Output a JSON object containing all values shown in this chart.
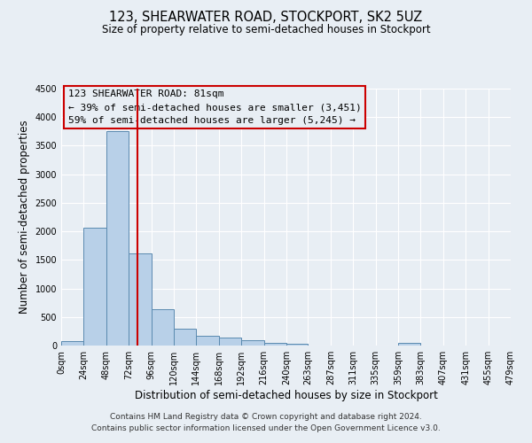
{
  "title": "123, SHEARWATER ROAD, STOCKPORT, SK2 5UZ",
  "subtitle": "Size of property relative to semi-detached houses in Stockport",
  "xlabel": "Distribution of semi-detached houses by size in Stockport",
  "ylabel": "Number of semi-detached properties",
  "footer_line1": "Contains HM Land Registry data © Crown copyright and database right 2024.",
  "footer_line2": "Contains public sector information licensed under the Open Government Licence v3.0.",
  "bin_edges": [
    0,
    24,
    48,
    72,
    96,
    120,
    144,
    168,
    192,
    216,
    240,
    263,
    287,
    311,
    335,
    359,
    383,
    407,
    431,
    455,
    479
  ],
  "bar_heights": [
    80,
    2060,
    3760,
    1620,
    640,
    300,
    170,
    140,
    90,
    50,
    30,
    5,
    0,
    0,
    0,
    40,
    0,
    0,
    0,
    0
  ],
  "bar_color": "#b8d0e8",
  "bar_edge_color": "#5a8ab0",
  "vline_x": 81,
  "vline_color": "#cc0000",
  "annotation_line1": "123 SHEARWATER ROAD: 81sqm",
  "annotation_line2": "← 39% of semi-detached houses are smaller (3,451)",
  "annotation_line3": "59% of semi-detached houses are larger (5,245) →",
  "box_edge_color": "#cc0000",
  "ylim": [
    0,
    4500
  ],
  "yticks": [
    0,
    500,
    1000,
    1500,
    2000,
    2500,
    3000,
    3500,
    4000,
    4500
  ],
  "xtick_labels": [
    "0sqm",
    "24sqm",
    "48sqm",
    "72sqm",
    "96sqm",
    "120sqm",
    "144sqm",
    "168sqm",
    "192sqm",
    "216sqm",
    "240sqm",
    "263sqm",
    "287sqm",
    "311sqm",
    "335sqm",
    "359sqm",
    "383sqm",
    "407sqm",
    "431sqm",
    "455sqm",
    "479sqm"
  ],
  "bg_color": "#e8eef4",
  "grid_color": "#ffffff",
  "title_fontsize": 10.5,
  "subtitle_fontsize": 8.5,
  "axis_label_fontsize": 8.5,
  "tick_fontsize": 7,
  "annotation_fontsize": 8,
  "footer_fontsize": 6.5
}
